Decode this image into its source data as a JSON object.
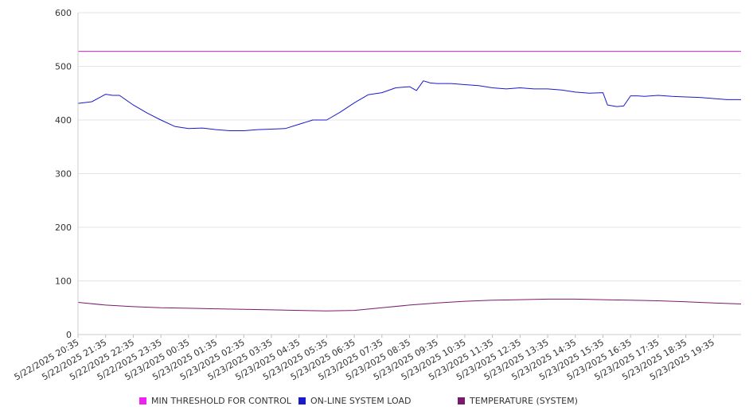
{
  "chart_data": {
    "type": "line",
    "x_tick_labels": [
      "5/22/2025 20:35",
      "5/22/2025 21:35",
      "5/22/2025 22:35",
      "5/22/2025 23:35",
      "5/23/2025 00:35",
      "5/23/2025 01:35",
      "5/23/2025 02:35",
      "5/23/2025 03:35",
      "5/23/2025 04:35",
      "5/23/2025 05:35",
      "5/23/2025 06:35",
      "5/23/2025 07:35",
      "5/23/2025 08:35",
      "5/23/2025 09:35",
      "5/23/2025 10:35",
      "5/23/2025 11:35",
      "5/23/2025 12:35",
      "5/23/2025 13:35",
      "5/23/2025 14:35",
      "5/23/2025 15:35",
      "5/23/2025 16:35",
      "5/23/2025 17:35",
      "5/23/2025 18:35",
      "5/23/2025 19:35"
    ],
    "ylim": [
      0,
      600
    ],
    "y_ticks": [
      0,
      100,
      200,
      300,
      400,
      500,
      600
    ],
    "grid": true,
    "legend_position": "bottom",
    "series": [
      {
        "name": "MIN THRESHOLD FOR CONTROL",
        "color": "#cc22cc",
        "x": [
          "5/22/2025 20:35",
          "5/23/2025 20:35"
        ],
        "values": [
          528,
          528
        ]
      },
      {
        "name": "ON-LINE SYSTEM LOAD",
        "color": "#1a1acc",
        "x": [
          "5/22/2025 20:35",
          "5/22/2025 21:05",
          "5/22/2025 21:35",
          "5/22/2025 21:50",
          "5/22/2025 22:05",
          "5/22/2025 22:35",
          "5/22/2025 23:05",
          "5/22/2025 23:35",
          "5/23/2025 00:05",
          "5/23/2025 00:35",
          "5/23/2025 01:05",
          "5/23/2025 01:35",
          "5/23/2025 02:05",
          "5/23/2025 02:35",
          "5/23/2025 03:05",
          "5/23/2025 03:35",
          "5/23/2025 04:05",
          "5/23/2025 04:35",
          "5/23/2025 05:05",
          "5/23/2025 05:35",
          "5/23/2025 06:05",
          "5/23/2025 06:35",
          "5/23/2025 07:05",
          "5/23/2025 07:35",
          "5/23/2025 08:05",
          "5/23/2025 08:35",
          "5/23/2025 08:50",
          "5/23/2025 09:05",
          "5/23/2025 09:20",
          "5/23/2025 09:35",
          "5/23/2025 10:05",
          "5/23/2025 10:35",
          "5/23/2025 11:05",
          "5/23/2025 11:35",
          "5/23/2025 12:05",
          "5/23/2025 12:35",
          "5/23/2025 13:05",
          "5/23/2025 13:35",
          "5/23/2025 14:05",
          "5/23/2025 14:35",
          "5/23/2025 15:05",
          "5/23/2025 15:35",
          "5/23/2025 15:45",
          "5/23/2025 16:05",
          "5/23/2025 16:20",
          "5/23/2025 16:35",
          "5/23/2025 16:50",
          "5/23/2025 17:05",
          "5/23/2025 17:35",
          "5/23/2025 18:05",
          "5/23/2025 18:35",
          "5/23/2025 19:05",
          "5/23/2025 19:35",
          "5/23/2025 20:05",
          "5/23/2025 20:35"
        ],
        "values": [
          431,
          434,
          448,
          446,
          446,
          428,
          413,
          400,
          388,
          384,
          385,
          382,
          380,
          380,
          382,
          383,
          384,
          392,
          400,
          400,
          415,
          432,
          447,
          451,
          460,
          462,
          455,
          473,
          469,
          468,
          468,
          466,
          464,
          460,
          458,
          460,
          458,
          458,
          456,
          452,
          450,
          451,
          428,
          425,
          426,
          445,
          445,
          444,
          446,
          444,
          443,
          442,
          440,
          438,
          438
        ]
      },
      {
        "name": "TEMPERATURE (SYSTEM)",
        "color": "#7a1a6e",
        "x": [
          "5/22/2025 20:35",
          "5/22/2025 21:35",
          "5/22/2025 22:35",
          "5/22/2025 23:35",
          "5/23/2025 00:35",
          "5/23/2025 01:35",
          "5/23/2025 02:35",
          "5/23/2025 03:35",
          "5/23/2025 04:35",
          "5/23/2025 05:35",
          "5/23/2025 06:35",
          "5/23/2025 07:35",
          "5/23/2025 08:35",
          "5/23/2025 09:35",
          "5/23/2025 10:35",
          "5/23/2025 11:35",
          "5/23/2025 12:35",
          "5/23/2025 13:35",
          "5/23/2025 14:35",
          "5/23/2025 15:35",
          "5/23/2025 16:35",
          "5/23/2025 17:35",
          "5/23/2025 18:35",
          "5/23/2025 19:35",
          "5/23/2025 20:35"
        ],
        "values": [
          60,
          55,
          52,
          50,
          49,
          48,
          47,
          46,
          45,
          44,
          45,
          50,
          55,
          59,
          62,
          64,
          65,
          66,
          66,
          65,
          64,
          63,
          61,
          59,
          57
        ]
      }
    ]
  }
}
